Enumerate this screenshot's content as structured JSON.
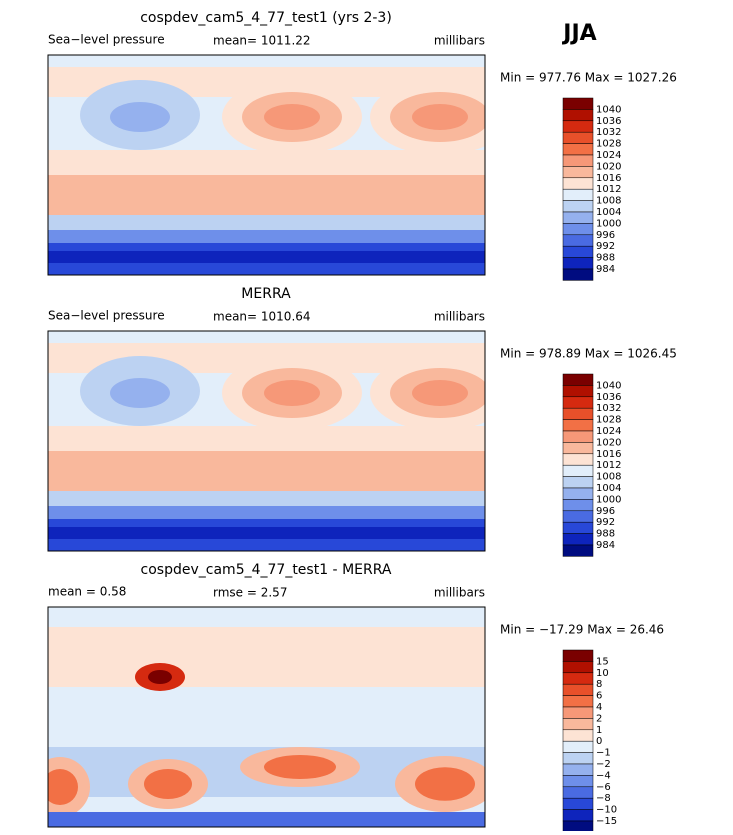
{
  "season": "JJA",
  "panels": [
    {
      "title": "cospdev_cam5_4_77_test1 (yrs 2-3)",
      "left": "Sea−level pressure",
      "center": "mean= 1011.22",
      "right": "millibars",
      "minmax": "Min = 977.76 Max = 1027.26",
      "colorbar": {
        "labels": [
          "1040",
          "1036",
          "1032",
          "1028",
          "1024",
          "1020",
          "1016",
          "1012",
          "1008",
          "1004",
          "1000",
          "996",
          "992",
          "988",
          "984"
        ],
        "colors": [
          "#7a0000",
          "#b01000",
          "#d52a10",
          "#e8502a",
          "#f27045",
          "#f69878",
          "#f9b89c",
          "#fde3d4",
          "#e2eefa",
          "#bcd2f2",
          "#95b1ee",
          "#6e8fea",
          "#4a6be2",
          "#2848d8",
          "#0e24bc",
          "#000c80"
        ]
      }
    },
    {
      "title": "MERRA",
      "left": "Sea−level pressure",
      "center": "mean= 1010.64",
      "right": "millibars",
      "minmax": "Min = 978.89 Max = 1026.45",
      "colorbar": {
        "labels": [
          "1040",
          "1036",
          "1032",
          "1028",
          "1024",
          "1020",
          "1016",
          "1012",
          "1008",
          "1004",
          "1000",
          "996",
          "992",
          "988",
          "984"
        ],
        "colors": [
          "#7a0000",
          "#b01000",
          "#d52a10",
          "#e8502a",
          "#f27045",
          "#f69878",
          "#f9b89c",
          "#fde3d4",
          "#e2eefa",
          "#bcd2f2",
          "#95b1ee",
          "#6e8fea",
          "#4a6be2",
          "#2848d8",
          "#0e24bc",
          "#000c80"
        ]
      }
    },
    {
      "title": "cospdev_cam5_4_77_test1 - MERRA",
      "left": "mean =   0.58",
      "center": "rmse =   2.57",
      "right": "millibars",
      "minmax": "Min = −17.29 Max =  26.46",
      "colorbar": {
        "labels": [
          "15",
          "10",
          "8",
          "6",
          "4",
          "2",
          "1",
          "0",
          "−1",
          "−2",
          "−4",
          "−6",
          "−8",
          "−10",
          "−15"
        ],
        "colors": [
          "#7a0000",
          "#b01000",
          "#d52a10",
          "#e8502a",
          "#f27045",
          "#f69878",
          "#f9b89c",
          "#fde3d4",
          "#e2eefa",
          "#bcd2f2",
          "#95b1ee",
          "#6e8fea",
          "#4a6be2",
          "#2848d8",
          "#0e24bc",
          "#000c80"
        ]
      }
    }
  ]
}
